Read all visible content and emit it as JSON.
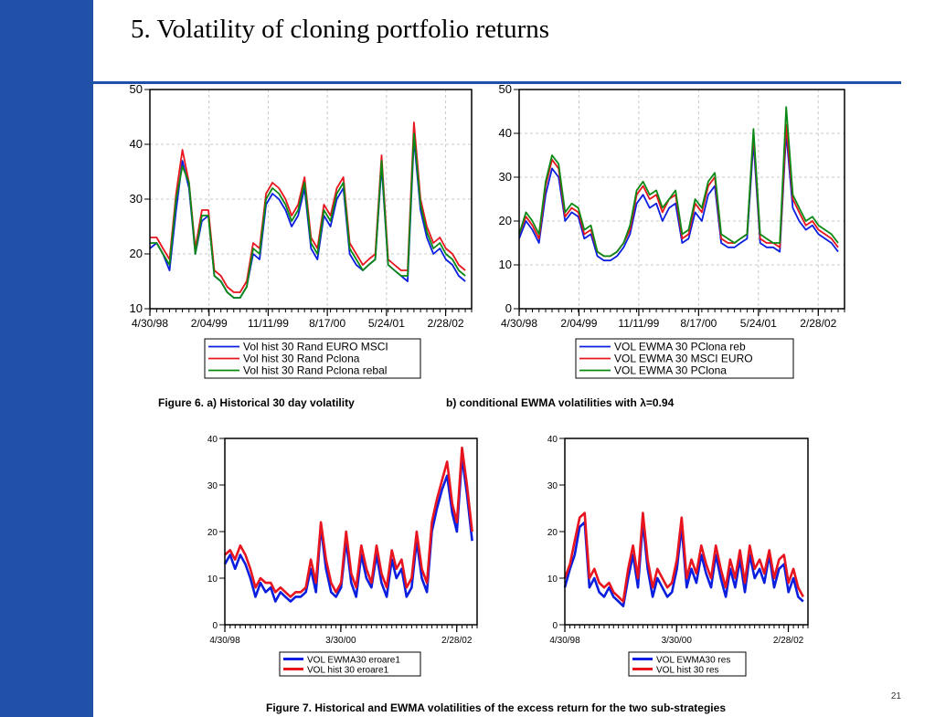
{
  "slide_title": "5. Volatility of cloning portfolio returns",
  "caption_fig6a": "Figure 6. a) Historical  30 day volatility",
  "caption_fig6b": "b) conditional  EWMA volatilities with λ=0.94",
  "caption_fig7": "Figure 7. Historical and EWMA volatilities of the excess return for the two sub-strategies",
  "page_number": "21",
  "colors": {
    "sidebar": "#2050a8",
    "blue": "#0a1ee0",
    "red": "#e8141e",
    "green": "#0a8a14"
  },
  "chart_data": [
    {
      "id": "fig6a",
      "type": "line",
      "x_type": "date",
      "xlim": [
        "1998-04-30",
        "2002-07-01"
      ],
      "xticks": [
        "1998-04-30",
        "1999-02-04",
        "1999-11-11",
        "2000-08-17",
        "2001-05-24",
        "2002-02-28"
      ],
      "xticklabels": [
        "4/30/98",
        "2/04/99",
        "11/11/99",
        "8/17/00",
        "5/24/01",
        "2/28/02"
      ],
      "ylim": [
        10,
        50
      ],
      "yticks": [
        10,
        20,
        30,
        40,
        50
      ],
      "grid": true,
      "legend": "bottom",
      "x": [
        "1998-04-30",
        "1998-06-01",
        "1998-07-01",
        "1998-08-01",
        "1998-09-01",
        "1998-10-01",
        "1998-11-01",
        "1998-12-01",
        "1999-01-01",
        "1999-02-01",
        "1999-03-01",
        "1999-04-01",
        "1999-05-01",
        "1999-06-01",
        "1999-07-01",
        "1999-08-01",
        "1999-09-01",
        "1999-10-01",
        "1999-11-01",
        "1999-12-01",
        "2000-01-01",
        "2000-02-01",
        "2000-03-01",
        "2000-04-01",
        "2000-05-01",
        "2000-06-01",
        "2000-07-01",
        "2000-08-01",
        "2000-09-01",
        "2000-10-01",
        "2000-11-01",
        "2000-12-01",
        "2001-01-01",
        "2001-02-01",
        "2001-03-01",
        "2001-04-01",
        "2001-05-01",
        "2001-06-01",
        "2001-07-01",
        "2001-08-01",
        "2001-09-01",
        "2001-10-01",
        "2001-11-01",
        "2001-12-01",
        "2002-01-01",
        "2002-02-01",
        "2002-03-01",
        "2002-04-01",
        "2002-05-01",
        "2002-06-01"
      ],
      "series": [
        {
          "name": "Vol hist 30 Rand EURO MSCI",
          "color": "blue",
          "values": [
            21,
            22,
            20,
            17,
            28,
            37,
            32,
            20,
            26,
            27,
            16,
            15,
            13,
            12,
            12,
            14,
            20,
            19,
            29,
            31,
            30,
            28,
            25,
            27,
            32,
            21,
            19,
            27,
            25,
            30,
            32,
            20,
            18,
            17,
            18,
            19,
            36,
            18,
            17,
            16,
            15,
            41,
            28,
            23,
            20,
            21,
            19,
            18,
            16,
            15
          ]
        },
        {
          "name": "Vol hist 30 Rand Pclona",
          "color": "red",
          "values": [
            23,
            23,
            21,
            19,
            31,
            39,
            33,
            21,
            28,
            28,
            17,
            16,
            14,
            13,
            13,
            15,
            22,
            21,
            31,
            33,
            32,
            30,
            27,
            29,
            34,
            23,
            21,
            29,
            27,
            32,
            34,
            22,
            20,
            18,
            19,
            20,
            38,
            19,
            18,
            17,
            17,
            44,
            30,
            25,
            22,
            23,
            21,
            20,
            18,
            17
          ]
        },
        {
          "name": "Vol hist 30 Rand Pclona rebal",
          "color": "green",
          "values": [
            22,
            22,
            20,
            18,
            30,
            36,
            33,
            20,
            27,
            27,
            16,
            15,
            13,
            12,
            12,
            14,
            21,
            20,
            30,
            32,
            31,
            29,
            26,
            28,
            33,
            22,
            20,
            28,
            26,
            31,
            33,
            21,
            19,
            17,
            18,
            19,
            37,
            18,
            17,
            16,
            16,
            42,
            29,
            24,
            21,
            22,
            20,
            19,
            17,
            16
          ]
        }
      ]
    },
    {
      "id": "fig6b",
      "type": "line",
      "x_type": "date",
      "xlim": [
        "1998-04-30",
        "2002-07-01"
      ],
      "xticks": [
        "1998-04-30",
        "1999-02-04",
        "1999-11-11",
        "2000-08-17",
        "2001-05-24",
        "2002-02-28"
      ],
      "xticklabels": [
        "4/30/98",
        "2/04/99",
        "11/11/99",
        "8/17/00",
        "5/24/01",
        "2/28/02"
      ],
      "ylim": [
        0,
        50
      ],
      "yticks": [
        0,
        10,
        20,
        30,
        40,
        50
      ],
      "grid": true,
      "legend": "bottom",
      "x": [
        "1998-04-30",
        "1998-06-01",
        "1998-07-01",
        "1998-08-01",
        "1998-09-01",
        "1998-10-01",
        "1998-11-01",
        "1998-12-01",
        "1999-01-01",
        "1999-02-01",
        "1999-03-01",
        "1999-04-01",
        "1999-05-01",
        "1999-06-01",
        "1999-07-01",
        "1999-08-01",
        "1999-09-01",
        "1999-10-01",
        "1999-11-01",
        "1999-12-01",
        "2000-01-01",
        "2000-02-01",
        "2000-03-01",
        "2000-04-01",
        "2000-05-01",
        "2000-06-01",
        "2000-07-01",
        "2000-08-01",
        "2000-09-01",
        "2000-10-01",
        "2000-11-01",
        "2000-12-01",
        "2001-01-01",
        "2001-02-01",
        "2001-03-01",
        "2001-04-01",
        "2001-05-01",
        "2001-06-01",
        "2001-07-01",
        "2001-08-01",
        "2001-09-01",
        "2001-10-01",
        "2001-11-01",
        "2001-12-01",
        "2002-01-01",
        "2002-02-01",
        "2002-03-01",
        "2002-04-01",
        "2002-05-01",
        "2002-06-01"
      ],
      "series": [
        {
          "name": "VOL EWMA 30 PClona reb",
          "color": "blue",
          "values": [
            16,
            20,
            18,
            15,
            26,
            32,
            30,
            20,
            22,
            21,
            16,
            17,
            12,
            11,
            11,
            12,
            14,
            17,
            24,
            26,
            23,
            24,
            20,
            23,
            24,
            15,
            16,
            22,
            20,
            26,
            28,
            15,
            14,
            14,
            15,
            16,
            38,
            15,
            14,
            14,
            13,
            40,
            23,
            20,
            18,
            19,
            17,
            16,
            15,
            13
          ]
        },
        {
          "name": "VOL EWMA 30 MSCI EURO",
          "color": "red",
          "values": [
            17,
            21,
            19,
            16,
            28,
            34,
            32,
            21,
            23,
            22,
            17,
            18,
            13,
            12,
            12,
            13,
            15,
            18,
            26,
            28,
            25,
            26,
            22,
            25,
            26,
            16,
            17,
            24,
            22,
            28,
            30,
            16,
            15,
            15,
            16,
            17,
            40,
            16,
            15,
            15,
            14,
            42,
            25,
            22,
            19,
            20,
            18,
            17,
            16,
            14
          ]
        },
        {
          "name": "VOL EWMA 30 PClona",
          "color": "green",
          "values": [
            17,
            22,
            20,
            17,
            29,
            35,
            33,
            22,
            24,
            23,
            18,
            19,
            13,
            12,
            12,
            13,
            15,
            19,
            27,
            29,
            26,
            27,
            23,
            25,
            27,
            17,
            18,
            25,
            23,
            29,
            31,
            17,
            16,
            15,
            16,
            17,
            41,
            17,
            16,
            15,
            15,
            46,
            26,
            23,
            20,
            21,
            19,
            18,
            17,
            15
          ]
        }
      ]
    },
    {
      "id": "fig7a",
      "type": "line",
      "x_type": "date",
      "xlim": [
        "1998-04-30",
        "2002-07-01"
      ],
      "xticks": [
        "1998-04-30",
        "2000-03-30",
        "2002-02-28"
      ],
      "xticklabels": [
        "4/30/98",
        "3/30/00",
        "2/28/02"
      ],
      "ylim": [
        0,
        40
      ],
      "yticks": [
        0,
        10,
        20,
        30,
        40
      ],
      "grid": false,
      "legend": "bottom",
      "x": [
        "1998-04-30",
        "1998-06-01",
        "1998-07-01",
        "1998-08-01",
        "1998-09-01",
        "1998-10-01",
        "1998-11-01",
        "1998-12-01",
        "1999-01-01",
        "1999-02-01",
        "1999-03-01",
        "1999-04-01",
        "1999-05-01",
        "1999-06-01",
        "1999-07-01",
        "1999-08-01",
        "1999-09-01",
        "1999-10-01",
        "1999-11-01",
        "1999-12-01",
        "2000-01-01",
        "2000-02-01",
        "2000-03-01",
        "2000-04-01",
        "2000-05-01",
        "2000-06-01",
        "2000-07-01",
        "2000-08-01",
        "2000-09-01",
        "2000-10-01",
        "2000-11-01",
        "2000-12-01",
        "2001-01-01",
        "2001-02-01",
        "2001-03-01",
        "2001-04-01",
        "2001-05-01",
        "2001-06-01",
        "2001-07-01",
        "2001-08-01",
        "2001-09-01",
        "2001-10-01",
        "2001-11-01",
        "2001-12-01",
        "2002-01-01",
        "2002-02-01",
        "2002-03-01",
        "2002-04-01",
        "2002-05-01",
        "2002-06-01"
      ],
      "series": [
        {
          "name": "VOL EWMA30 eroare1",
          "color": "blue",
          "values": [
            13,
            15,
            12,
            15,
            13,
            10,
            6,
            9,
            7,
            8,
            5,
            7,
            6,
            5,
            6,
            6,
            7,
            12,
            7,
            21,
            12,
            7,
            6,
            8,
            18,
            9,
            6,
            15,
            10,
            8,
            15,
            9,
            6,
            14,
            10,
            12,
            6,
            8,
            18,
            10,
            7,
            20,
            25,
            29,
            32,
            24,
            20,
            36,
            28,
            18
          ]
        },
        {
          "name": "VOL hist 30 eroare1",
          "color": "red",
          "values": [
            15,
            16,
            14,
            17,
            15,
            12,
            8,
            10,
            9,
            9,
            7,
            8,
            7,
            6,
            7,
            7,
            8,
            14,
            9,
            22,
            14,
            9,
            7,
            9,
            20,
            11,
            8,
            17,
            12,
            9,
            17,
            11,
            8,
            16,
            12,
            14,
            8,
            10,
            20,
            12,
            9,
            22,
            27,
            31,
            35,
            26,
            22,
            38,
            30,
            20
          ]
        }
      ]
    },
    {
      "id": "fig7b",
      "type": "line",
      "x_type": "date",
      "xlim": [
        "1998-04-30",
        "2002-07-01"
      ],
      "xticks": [
        "1998-04-30",
        "2000-03-30",
        "2002-02-28"
      ],
      "xticklabels": [
        "4/30/98",
        "3/30/00",
        "2/28/02"
      ],
      "ylim": [
        0,
        40
      ],
      "yticks": [
        0,
        10,
        20,
        30,
        40
      ],
      "grid": false,
      "legend": "bottom",
      "x": [
        "1998-04-30",
        "1998-06-01",
        "1998-07-01",
        "1998-08-01",
        "1998-09-01",
        "1998-10-01",
        "1998-11-01",
        "1998-12-01",
        "1999-01-01",
        "1999-02-01",
        "1999-03-01",
        "1999-04-01",
        "1999-05-01",
        "1999-06-01",
        "1999-07-01",
        "1999-08-01",
        "1999-09-01",
        "1999-10-01",
        "1999-11-01",
        "1999-12-01",
        "2000-01-01",
        "2000-02-01",
        "2000-03-01",
        "2000-04-01",
        "2000-05-01",
        "2000-06-01",
        "2000-07-01",
        "2000-08-01",
        "2000-09-01",
        "2000-10-01",
        "2000-11-01",
        "2000-12-01",
        "2001-01-01",
        "2001-02-01",
        "2001-03-01",
        "2001-04-01",
        "2001-05-01",
        "2001-06-01",
        "2001-07-01",
        "2001-08-01",
        "2001-09-01",
        "2001-10-01",
        "2001-11-01",
        "2001-12-01",
        "2002-01-01",
        "2002-02-01",
        "2002-03-01",
        "2002-04-01",
        "2002-05-01",
        "2002-06-01"
      ],
      "series": [
        {
          "name": "VOL EWMA30 res",
          "color": "blue",
          "values": [
            8,
            12,
            15,
            21,
            22,
            8,
            10,
            7,
            6,
            8,
            6,
            5,
            4,
            10,
            15,
            8,
            22,
            12,
            6,
            10,
            8,
            6,
            7,
            12,
            21,
            8,
            12,
            9,
            15,
            11,
            8,
            15,
            10,
            6,
            12,
            8,
            14,
            7,
            15,
            10,
            12,
            9,
            15,
            8,
            12,
            13,
            7,
            10,
            6,
            5
          ]
        },
        {
          "name": "VOL hist 30 res",
          "color": "red",
          "values": [
            10,
            13,
            18,
            23,
            24,
            10,
            12,
            9,
            8,
            9,
            7,
            6,
            5,
            12,
            17,
            10,
            24,
            14,
            8,
            12,
            10,
            8,
            9,
            14,
            23,
            10,
            14,
            11,
            17,
            13,
            10,
            17,
            12,
            8,
            14,
            10,
            16,
            9,
            17,
            12,
            14,
            11,
            16,
            10,
            14,
            15,
            9,
            12,
            8,
            6
          ]
        }
      ]
    }
  ]
}
